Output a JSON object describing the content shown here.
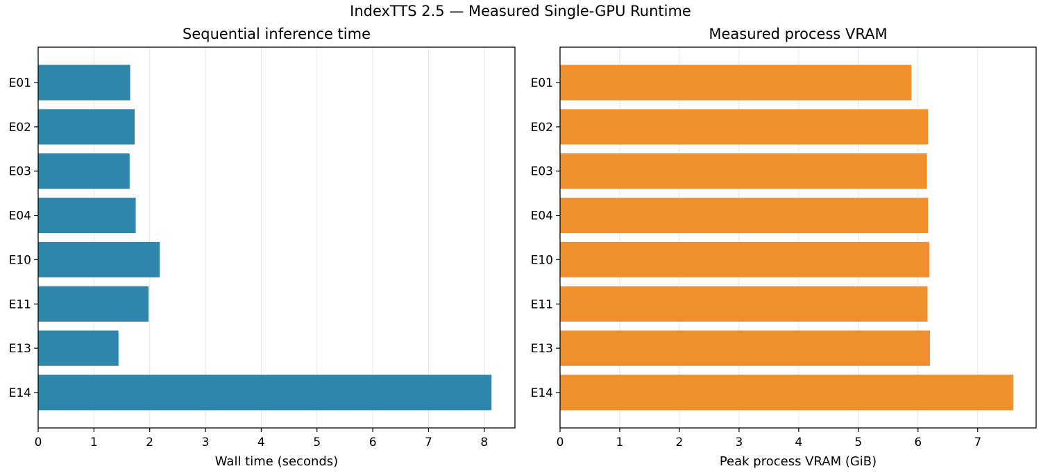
{
  "figure": {
    "suptitle": "IndexTTS 2.5 — Measured Single-GPU Runtime"
  },
  "chart_data": [
    {
      "type": "bar",
      "orientation": "horizontal",
      "title": "Sequential inference time",
      "xlabel": "Wall time (seconds)",
      "ylabel": "",
      "categories": [
        "E01",
        "E02",
        "E03",
        "E04",
        "E10",
        "E11",
        "E13",
        "E14"
      ],
      "values": [
        1.65,
        1.73,
        1.64,
        1.75,
        2.18,
        1.98,
        1.44,
        8.13
      ],
      "xlim": [
        0,
        8.55
      ],
      "xticks": [
        0,
        1,
        2,
        3,
        4,
        5,
        6,
        7,
        8
      ],
      "color": "#2e86ab",
      "grid": "vertical",
      "legend": "none"
    },
    {
      "type": "bar",
      "orientation": "horizontal",
      "title": "Measured process VRAM",
      "xlabel": "Peak process VRAM (GiB)",
      "ylabel": "",
      "categories": [
        "E01",
        "E02",
        "E03",
        "E04",
        "E10",
        "E11",
        "E13",
        "E14"
      ],
      "values": [
        5.89,
        6.17,
        6.15,
        6.17,
        6.19,
        6.16,
        6.2,
        7.6
      ],
      "xlim": [
        0,
        7.98
      ],
      "xticks": [
        0,
        1,
        2,
        3,
        4,
        5,
        6,
        7
      ],
      "color": "#f18f2f",
      "grid": "vertical",
      "legend": "none"
    }
  ]
}
